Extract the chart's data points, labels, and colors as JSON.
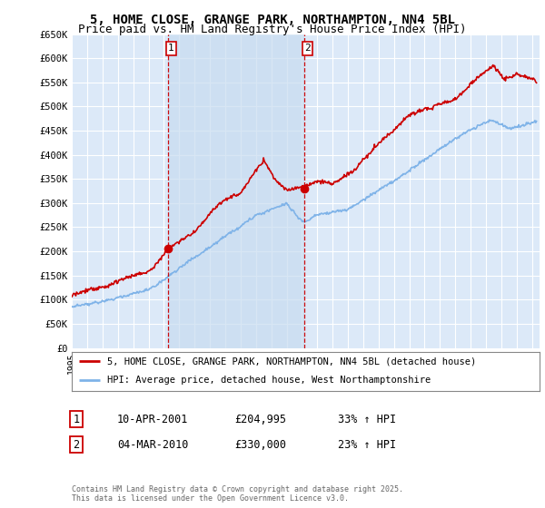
{
  "title": "5, HOME CLOSE, GRANGE PARK, NORTHAMPTON, NN4 5BL",
  "subtitle": "Price paid vs. HM Land Registry's House Price Index (HPI)",
  "ylabel_ticks": [
    "£0",
    "£50K",
    "£100K",
    "£150K",
    "£200K",
    "£250K",
    "£300K",
    "£350K",
    "£400K",
    "£450K",
    "£500K",
    "£550K",
    "£600K",
    "£650K"
  ],
  "ylim": [
    0,
    650000
  ],
  "xlim_start": 1995.0,
  "xlim_end": 2025.5,
  "background_color": "#ffffff",
  "plot_bg_color": "#dce9f8",
  "shade_color": "#c8dcf0",
  "grid_color": "#ffffff",
  "red_color": "#cc0000",
  "blue_color": "#7fb3e8",
  "marker1_date": 2001.27,
  "marker2_date": 2010.17,
  "marker1_price": 204995,
  "marker2_price": 330000,
  "legend1": "5, HOME CLOSE, GRANGE PARK, NORTHAMPTON, NN4 5BL (detached house)",
  "legend2": "HPI: Average price, detached house, West Northamptonshire",
  "label1_date": "10-APR-2001",
  "label1_price": "£204,995",
  "label1_hpi": "33% ↑ HPI",
  "label2_date": "04-MAR-2010",
  "label2_price": "£330,000",
  "label2_hpi": "23% ↑ HPI",
  "footer": "Contains HM Land Registry data © Crown copyright and database right 2025.\nThis data is licensed under the Open Government Licence v3.0.",
  "title_fontsize": 10,
  "subtitle_fontsize": 9
}
